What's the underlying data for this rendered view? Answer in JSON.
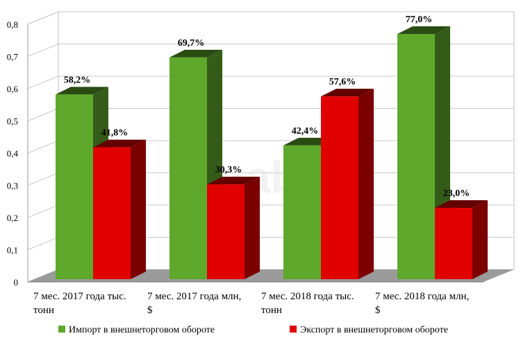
{
  "chart_data": {
    "type": "bar",
    "title": "",
    "xlabel": "",
    "ylabel": "",
    "ylim": [
      0,
      0.8
    ],
    "yticks": [
      "0",
      "0,1",
      "0,2",
      "0,3",
      "0,4",
      "0,5",
      "0,6",
      "0,7",
      "0,8"
    ],
    "grid": true,
    "legend_position": "bottom",
    "categories": [
      [
        "7 мес. 2017 года тыс.",
        "тонн"
      ],
      [
        "7 мес. 2017 года млн,",
        "$"
      ],
      [
        "7 мес. 2018 года тыс.",
        "тонн"
      ],
      [
        "7 мес. 2018 года млн,",
        "$"
      ]
    ],
    "series": [
      {
        "name": "Импорт в внешнеторговом обороте",
        "color": "#5ea82b",
        "values": [
          0.582,
          0.697,
          0.424,
          0.77
        ],
        "labels": [
          "58,2%",
          "69,7%",
          "42,4%",
          "77,0%"
        ]
      },
      {
        "name": "Экспорт в внешнеторговом обороте",
        "color": "#e00000",
        "values": [
          0.418,
          0.303,
          0.576,
          0.23
        ],
        "labels": [
          "41,8%",
          "30,3%",
          "57,6%",
          "23,0%"
        ]
      }
    ],
    "watermark": "Tazabek"
  }
}
